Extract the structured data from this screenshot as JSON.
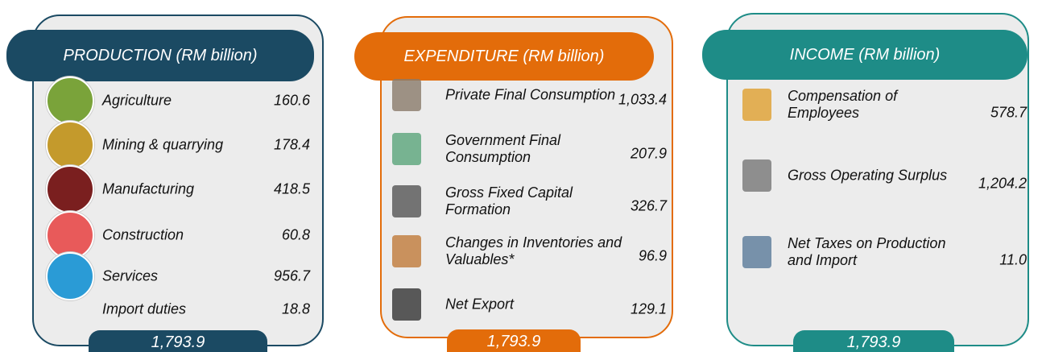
{
  "panels": [
    {
      "title": "PRODUCTION (RM billion)",
      "items": [
        {
          "label": "Agriculture",
          "value": "160.6"
        },
        {
          "label": "Mining & quarrying",
          "value": "178.4"
        },
        {
          "label": "Manufacturing",
          "value": "418.5"
        },
        {
          "label": "Construction",
          "value": "60.8"
        },
        {
          "label": "Services",
          "value": "956.7"
        },
        {
          "label": "Import duties",
          "value": "18.8"
        }
      ],
      "total": "1,793.9"
    },
    {
      "title": "EXPENDITURE (RM billion)",
      "items": [
        {
          "label": "Private Final Consumption",
          "value": "1,033.4"
        },
        {
          "label": "Government Final Consumption",
          "value": "207.9"
        },
        {
          "label": "Gross Fixed Capital Formation",
          "value": "326.7"
        },
        {
          "label": "Changes in Inventories and Valuables*",
          "value": "96.9"
        },
        {
          "label": "Net Export",
          "value": "129.1"
        }
      ],
      "total": "1,793.9"
    },
    {
      "title": "INCOME (RM billion)",
      "items": [
        {
          "label": "Compensation of Employees",
          "value": "578.7"
        },
        {
          "label": "Gross Operating Surplus",
          "value": "1,204.2"
        },
        {
          "label": "Net Taxes on Production and Import",
          "value": "11.0"
        }
      ],
      "total": "1,793.9"
    }
  ]
}
